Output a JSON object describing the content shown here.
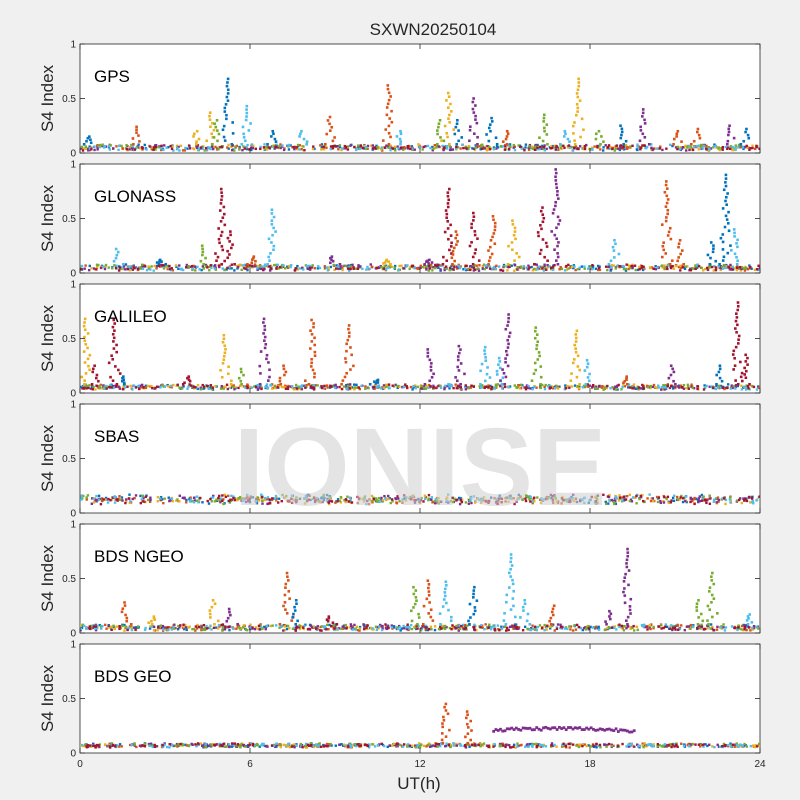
{
  "chart_data": {
    "type": "scatter",
    "title": "SXWN20250104",
    "xlabel": "UT(h)",
    "ylabel": "S4 Index",
    "xlim": [
      0,
      24
    ],
    "x_ticks": [
      "0",
      "6",
      "12",
      "18",
      "24"
    ],
    "ylim": [
      0,
      1
    ],
    "y_ticks": [
      "0",
      "0.5",
      "1"
    ],
    "watermark": "IONISE",
    "series_colors": [
      "#0072BD",
      "#D95319",
      "#EDB120",
      "#7E2F8E",
      "#77AC30",
      "#4DBEEE",
      "#A2142F"
    ],
    "panels": [
      {
        "label": "GPS",
        "baseline": [
          0.02,
          0.08
        ],
        "spikes": [
          {
            "x": 0.3,
            "y": 0.15,
            "color": 0
          },
          {
            "x": 2.0,
            "y": 0.24,
            "color": 1
          },
          {
            "x": 4.1,
            "y": 0.2,
            "color": 2
          },
          {
            "x": 4.6,
            "y": 0.37,
            "color": 2
          },
          {
            "x": 4.8,
            "y": 0.3,
            "color": 4
          },
          {
            "x": 5.2,
            "y": 0.68,
            "color": 0
          },
          {
            "x": 5.9,
            "y": 0.43,
            "color": 5
          },
          {
            "x": 6.8,
            "y": 0.2,
            "color": 0
          },
          {
            "x": 7.8,
            "y": 0.2,
            "color": 5
          },
          {
            "x": 8.8,
            "y": 0.33,
            "color": 1
          },
          {
            "x": 10.9,
            "y": 0.62,
            "color": 1
          },
          {
            "x": 11.3,
            "y": 0.2,
            "color": 5
          },
          {
            "x": 12.7,
            "y": 0.3,
            "color": 4
          },
          {
            "x": 13.0,
            "y": 0.55,
            "color": 2
          },
          {
            "x": 13.3,
            "y": 0.3,
            "color": 0
          },
          {
            "x": 13.9,
            "y": 0.5,
            "color": 3
          },
          {
            "x": 14.5,
            "y": 0.32,
            "color": 0
          },
          {
            "x": 15.1,
            "y": 0.2,
            "color": 1
          },
          {
            "x": 16.4,
            "y": 0.35,
            "color": 4
          },
          {
            "x": 17.1,
            "y": 0.2,
            "color": 5
          },
          {
            "x": 17.6,
            "y": 0.68,
            "color": 2
          },
          {
            "x": 18.3,
            "y": 0.2,
            "color": 4
          },
          {
            "x": 19.1,
            "y": 0.25,
            "color": 0
          },
          {
            "x": 19.9,
            "y": 0.4,
            "color": 3
          },
          {
            "x": 21.1,
            "y": 0.2,
            "color": 1
          },
          {
            "x": 21.8,
            "y": 0.22,
            "color": 1
          },
          {
            "x": 22.9,
            "y": 0.25,
            "color": 3
          },
          {
            "x": 23.5,
            "y": 0.22,
            "color": 0
          }
        ]
      },
      {
        "label": "GLONASS",
        "baseline": [
          0.02,
          0.08
        ],
        "spikes": [
          {
            "x": 1.3,
            "y": 0.22,
            "color": 5
          },
          {
            "x": 2.8,
            "y": 0.12,
            "color": 0
          },
          {
            "x": 4.3,
            "y": 0.25,
            "color": 4
          },
          {
            "x": 5.0,
            "y": 0.77,
            "color": 6
          },
          {
            "x": 5.3,
            "y": 0.38,
            "color": 6
          },
          {
            "x": 6.1,
            "y": 0.15,
            "color": 1
          },
          {
            "x": 6.8,
            "y": 0.58,
            "color": 5
          },
          {
            "x": 8.9,
            "y": 0.15,
            "color": 3
          },
          {
            "x": 10.8,
            "y": 0.12,
            "color": 2
          },
          {
            "x": 12.3,
            "y": 0.12,
            "color": 3
          },
          {
            "x": 13.0,
            "y": 0.77,
            "color": 6
          },
          {
            "x": 13.3,
            "y": 0.38,
            "color": 1
          },
          {
            "x": 13.9,
            "y": 0.55,
            "color": 6
          },
          {
            "x": 14.6,
            "y": 0.52,
            "color": 1
          },
          {
            "x": 15.3,
            "y": 0.48,
            "color": 2
          },
          {
            "x": 16.3,
            "y": 0.6,
            "color": 6
          },
          {
            "x": 16.8,
            "y": 0.95,
            "color": 3
          },
          {
            "x": 18.9,
            "y": 0.3,
            "color": 5
          },
          {
            "x": 20.7,
            "y": 0.84,
            "color": 1
          },
          {
            "x": 21.2,
            "y": 0.3,
            "color": 1
          },
          {
            "x": 22.3,
            "y": 0.28,
            "color": 0
          },
          {
            "x": 22.8,
            "y": 0.9,
            "color": 0
          },
          {
            "x": 23.1,
            "y": 0.4,
            "color": 5
          }
        ]
      },
      {
        "label": "GALILEO",
        "baseline": [
          0.03,
          0.08
        ],
        "spikes": [
          {
            "x": 0.2,
            "y": 0.68,
            "color": 2
          },
          {
            "x": 0.5,
            "y": 0.25,
            "color": 6
          },
          {
            "x": 1.2,
            "y": 0.67,
            "color": 6
          },
          {
            "x": 1.5,
            "y": 0.15,
            "color": 0
          },
          {
            "x": 3.8,
            "y": 0.15,
            "color": 6
          },
          {
            "x": 5.1,
            "y": 0.53,
            "color": 2
          },
          {
            "x": 5.7,
            "y": 0.22,
            "color": 4
          },
          {
            "x": 6.5,
            "y": 0.68,
            "color": 3
          },
          {
            "x": 7.2,
            "y": 0.25,
            "color": 1
          },
          {
            "x": 8.2,
            "y": 0.67,
            "color": 1
          },
          {
            "x": 9.5,
            "y": 0.62,
            "color": 1
          },
          {
            "x": 10.5,
            "y": 0.12,
            "color": 0
          },
          {
            "x": 12.3,
            "y": 0.4,
            "color": 3
          },
          {
            "x": 13.4,
            "y": 0.43,
            "color": 3
          },
          {
            "x": 14.3,
            "y": 0.42,
            "color": 5
          },
          {
            "x": 14.8,
            "y": 0.32,
            "color": 5
          },
          {
            "x": 15.1,
            "y": 0.72,
            "color": 3
          },
          {
            "x": 16.1,
            "y": 0.6,
            "color": 4
          },
          {
            "x": 17.5,
            "y": 0.57,
            "color": 2
          },
          {
            "x": 17.9,
            "y": 0.3,
            "color": 5
          },
          {
            "x": 19.3,
            "y": 0.15,
            "color": 1
          },
          {
            "x": 20.9,
            "y": 0.25,
            "color": 3
          },
          {
            "x": 22.6,
            "y": 0.25,
            "color": 0
          },
          {
            "x": 23.2,
            "y": 0.83,
            "color": 6
          },
          {
            "x": 23.5,
            "y": 0.35,
            "color": 6
          }
        ]
      },
      {
        "label": "SBAS",
        "baseline": [
          0.08,
          0.17
        ],
        "spikes": []
      },
      {
        "label": "BDS NGEO",
        "baseline": [
          0.02,
          0.08
        ],
        "spikes": [
          {
            "x": 1.6,
            "y": 0.28,
            "color": 1
          },
          {
            "x": 2.6,
            "y": 0.15,
            "color": 2
          },
          {
            "x": 4.7,
            "y": 0.3,
            "color": 2
          },
          {
            "x": 5.3,
            "y": 0.22,
            "color": 3
          },
          {
            "x": 7.3,
            "y": 0.55,
            "color": 1
          },
          {
            "x": 7.6,
            "y": 0.3,
            "color": 0
          },
          {
            "x": 8.8,
            "y": 0.15,
            "color": 6
          },
          {
            "x": 11.8,
            "y": 0.42,
            "color": 4
          },
          {
            "x": 12.3,
            "y": 0.48,
            "color": 1
          },
          {
            "x": 12.9,
            "y": 0.47,
            "color": 5
          },
          {
            "x": 13.9,
            "y": 0.42,
            "color": 0
          },
          {
            "x": 15.2,
            "y": 0.72,
            "color": 5
          },
          {
            "x": 15.7,
            "y": 0.3,
            "color": 5
          },
          {
            "x": 16.7,
            "y": 0.25,
            "color": 1
          },
          {
            "x": 18.7,
            "y": 0.2,
            "color": 3
          },
          {
            "x": 19.3,
            "y": 0.77,
            "color": 3
          },
          {
            "x": 21.8,
            "y": 0.3,
            "color": 4
          },
          {
            "x": 22.3,
            "y": 0.55,
            "color": 4
          },
          {
            "x": 23.6,
            "y": 0.17,
            "color": 5
          }
        ]
      },
      {
        "label": "BDS GEO",
        "baseline": [
          0.05,
          0.09
        ],
        "spikes": [
          {
            "x": 12.9,
            "y": 0.45,
            "color": 1
          },
          {
            "x": 13.7,
            "y": 0.38,
            "color": 1
          }
        ],
        "band": {
          "x_start": 14.6,
          "x_end": 19.6,
          "y": 0.21,
          "color": 3
        }
      }
    ]
  }
}
